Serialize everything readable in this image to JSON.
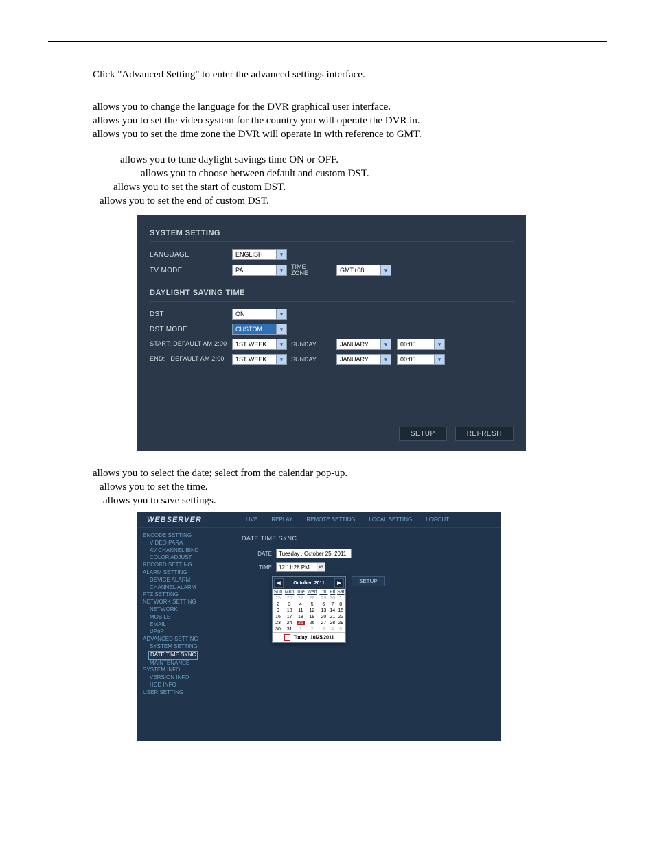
{
  "intro": "Click \"Advanced Setting\" to enter the advanced settings interface.",
  "group1": {
    "l1": "allows you to change the language for the DVR graphical user interface.",
    "l2": "allows you to set the video system for the country you will operate the DVR in.",
    "l3": "allows you to set the time zone the DVR will operate in with reference to GMT."
  },
  "group2": {
    "l1": "allows you to tune daylight savings time ON or OFF.",
    "l2": "allows you to choose between default and custom DST.",
    "l3": "allows you to set the start of custom DST.",
    "l4": "allows you to set the end of custom DST."
  },
  "panel": {
    "title": "SYSTEM SETTING",
    "rows": {
      "language": {
        "label": "LANGUAGE",
        "value": "ENGLISH"
      },
      "tvmode": {
        "label": "TV MODE",
        "value": "PAL",
        "tz_label": "TIME\nZONE",
        "tz_value": "GMT+08"
      }
    },
    "dst_title": "DAYLIGHT SAVING TIME",
    "dst": {
      "dst": {
        "label": "DST",
        "value": "ON"
      },
      "dstmode": {
        "label": "DST MODE",
        "value": "CUSTOM"
      },
      "start": {
        "label": "START: DEFAULT AM 2:00",
        "week": "1ST WEEK",
        "day": "SUNDAY",
        "month": "JANUARY",
        "time": "00:00"
      },
      "end": {
        "label": "END:   DEFAULT AM 2:00",
        "week": "1ST WEEK",
        "day": "SUNDAY",
        "month": "JANUARY",
        "time": "00:00"
      }
    },
    "btn_setup": "SETUP",
    "btn_refresh": "REFRESH"
  },
  "group3": {
    "l1": "allows you to select the date; select from the calendar pop-up.",
    "l2": "allows you to set the time.",
    "l3": "allows you to save settings."
  },
  "web": {
    "logo": "WEBSERVER",
    "tabs": {
      "live": "LIVE",
      "replay": "REPLAY",
      "remote": "REMOTE SETTING",
      "local": "LOCAL SETTING",
      "logout": "LOGOUT"
    },
    "side": {
      "g1": "ENCODE SETTING",
      "g1a": "VIDEO PARA",
      "g1b": "AV CHANNEL BIND",
      "g1c": "COLOR ADJUST",
      "g2": "RECORD SETTING",
      "g3": "ALARM SETTING",
      "g3a": "DEVICE ALARM",
      "g3b": "CHANNEL ALARM",
      "g4": "PTZ SETTING",
      "g5": "NETWORK SETTING",
      "g5a": "NETWORK",
      "g5b": "MOBILE",
      "g5c": "EMAIL",
      "g5d": "UPnP",
      "g6": "ADVANCED SETTING",
      "g6a": "SYSTEM SETTING",
      "g6b": "DATE TIME SYNC",
      "g6c": "MAINTENANCE",
      "g7": "SYSTEM INFO",
      "g7a": "VERSION INFO",
      "g7b": "HDD INFO",
      "g8": "USER SETTING"
    },
    "main": {
      "heading": "DATE TIME SYNC",
      "date_label": "DATE",
      "date_value": "Tuesday ,  October 25, 2011",
      "time_label": "TIME",
      "time_value": "12:11:28 PM",
      "setup": "SETUP"
    },
    "cal": {
      "title": "October, 2011",
      "dow": [
        "Sun",
        "Mon",
        "Tue",
        "Wed",
        "Thu",
        "Fri",
        "Sat"
      ],
      "rows": [
        [
          {
            "d": "25",
            "dim": true
          },
          {
            "d": "26",
            "dim": true
          },
          {
            "d": "27",
            "dim": true
          },
          {
            "d": "28",
            "dim": true
          },
          {
            "d": "29",
            "dim": true
          },
          {
            "d": "30",
            "dim": true
          },
          {
            "d": "1"
          }
        ],
        [
          {
            "d": "2"
          },
          {
            "d": "3"
          },
          {
            "d": "4"
          },
          {
            "d": "5"
          },
          {
            "d": "6"
          },
          {
            "d": "7"
          },
          {
            "d": "8"
          }
        ],
        [
          {
            "d": "9"
          },
          {
            "d": "10"
          },
          {
            "d": "11"
          },
          {
            "d": "12"
          },
          {
            "d": "13"
          },
          {
            "d": "14"
          },
          {
            "d": "15"
          }
        ],
        [
          {
            "d": "16"
          },
          {
            "d": "17"
          },
          {
            "d": "18"
          },
          {
            "d": "19"
          },
          {
            "d": "20"
          },
          {
            "d": "21"
          },
          {
            "d": "22"
          }
        ],
        [
          {
            "d": "23"
          },
          {
            "d": "24"
          },
          {
            "d": "25",
            "today": true
          },
          {
            "d": "26"
          },
          {
            "d": "27"
          },
          {
            "d": "28"
          },
          {
            "d": "29"
          }
        ],
        [
          {
            "d": "30"
          },
          {
            "d": "31"
          },
          {
            "d": "1",
            "dim": true
          },
          {
            "d": "2",
            "dim": true
          },
          {
            "d": "3",
            "dim": true
          },
          {
            "d": "4",
            "dim": true
          },
          {
            "d": "5",
            "dim": true
          }
        ]
      ],
      "today": "Today: 10/25/2011"
    }
  }
}
